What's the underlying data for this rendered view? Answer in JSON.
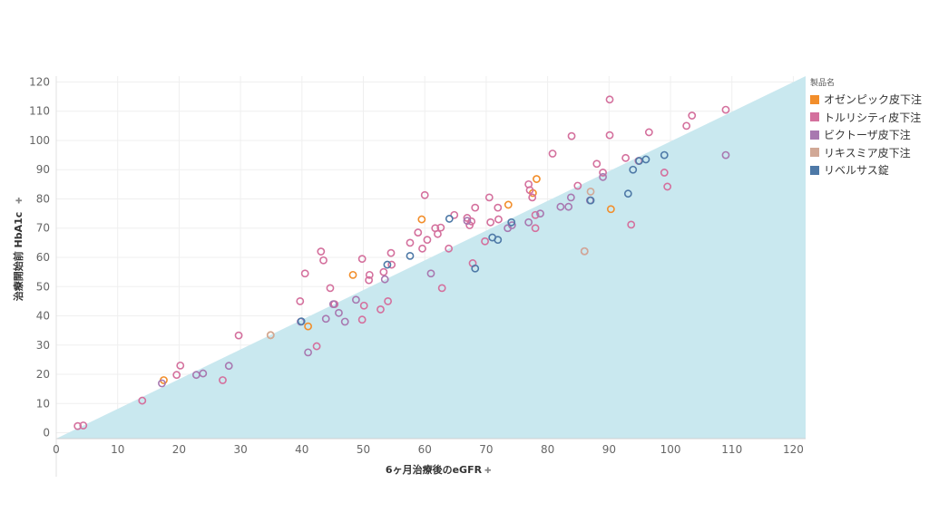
{
  "legend": {
    "title": "製品名",
    "items": [
      {
        "label": "オゼンピック皮下注",
        "color": "#f28e2b"
      },
      {
        "label": "トルリシティ皮下注",
        "color": "#d4709d"
      },
      {
        "label": "ビクトーザ皮下注",
        "color": "#a878b0"
      },
      {
        "label": "リキスミア皮下注",
        "color": "#d1a896"
      },
      {
        "label": "リベルサス錠",
        "color": "#4e79a7"
      }
    ]
  },
  "chart_data": {
    "type": "scatter",
    "xlabel": "6ヶ月治療後のeGFR",
    "ylabel": "治療開始前 HbA1c",
    "xlim": [
      0,
      122
    ],
    "ylim": [
      -2,
      122
    ],
    "x_ticks": [
      0,
      10,
      20,
      30,
      40,
      50,
      60,
      70,
      80,
      90,
      100,
      110,
      120
    ],
    "y_ticks": [
      0,
      10,
      20,
      30,
      40,
      50,
      60,
      70,
      80,
      90,
      100,
      110,
      120
    ],
    "grid": true,
    "legend_position": "right",
    "reference_area": {
      "type": "below-diagonal-y-equals-x",
      "color": "#c9e8ef"
    },
    "series": [
      {
        "name": "オゼンピック皮下注",
        "color": "#f28e2b",
        "points": [
          [
            17.5,
            18
          ],
          [
            34.9,
            33.4
          ],
          [
            41,
            36.4
          ],
          [
            48.3,
            54
          ],
          [
            59.5,
            73
          ],
          [
            73.6,
            78
          ],
          [
            77.6,
            82
          ],
          [
            78.2,
            86.8
          ],
          [
            90.3,
            76.5
          ]
        ]
      },
      {
        "name": "トルリシティ皮下注",
        "color": "#d4709d",
        "points": [
          [
            3.5,
            2.3
          ],
          [
            4.4,
            2.5
          ],
          [
            14,
            11
          ],
          [
            19.6,
            19.8
          ],
          [
            20.2,
            23
          ],
          [
            27.1,
            18
          ],
          [
            29.7,
            33.3
          ],
          [
            39.7,
            45
          ],
          [
            40.5,
            54.5
          ],
          [
            42.4,
            29.6
          ],
          [
            43.1,
            62
          ],
          [
            43.5,
            59
          ],
          [
            44.6,
            49.5
          ],
          [
            45.3,
            44
          ],
          [
            49.8,
            59.5
          ],
          [
            49.8,
            38.7
          ],
          [
            50.1,
            43.5
          ],
          [
            50.9,
            52.2
          ],
          [
            51,
            54
          ],
          [
            52.8,
            42.2
          ],
          [
            53.3,
            55
          ],
          [
            54,
            45
          ],
          [
            54.5,
            61.5
          ],
          [
            54.6,
            57.5
          ],
          [
            57.6,
            65
          ],
          [
            58.9,
            68.5
          ],
          [
            59.6,
            63
          ],
          [
            60,
            81.3
          ],
          [
            60.4,
            66
          ],
          [
            61.7,
            70
          ],
          [
            62.1,
            68
          ],
          [
            62.6,
            70.2
          ],
          [
            62.8,
            49.5
          ],
          [
            63.9,
            63
          ],
          [
            64.8,
            74.5
          ],
          [
            66.9,
            73.5
          ],
          [
            67.3,
            71
          ],
          [
            67.6,
            72.3
          ],
          [
            67.8,
            58
          ],
          [
            68.2,
            77
          ],
          [
            69.8,
            65.5
          ],
          [
            70.5,
            80.5
          ],
          [
            70.7,
            72
          ],
          [
            71.9,
            77
          ],
          [
            72,
            73
          ],
          [
            76.9,
            85
          ],
          [
            77.1,
            83
          ],
          [
            77.5,
            80.5
          ],
          [
            78,
            74.5
          ],
          [
            78,
            70
          ],
          [
            80.8,
            95.5
          ],
          [
            83.9,
            101.5
          ],
          [
            84.9,
            84.5
          ],
          [
            86,
            62.1
          ],
          [
            88,
            92
          ],
          [
            89,
            89
          ],
          [
            90.1,
            114
          ],
          [
            90.1,
            101.8
          ],
          [
            92.7,
            94
          ],
          [
            93.6,
            71.2
          ],
          [
            94.8,
            93
          ],
          [
            96.5,
            102.8
          ],
          [
            99,
            89
          ],
          [
            99.5,
            84.2
          ],
          [
            102.6,
            105
          ],
          [
            103.5,
            108.5
          ],
          [
            109,
            110.5
          ]
        ]
      },
      {
        "name": "ビクトーザ皮下注",
        "color": "#a878b0",
        "points": [
          [
            17.2,
            16.9
          ],
          [
            22.8,
            19.8
          ],
          [
            23.9,
            20.3
          ],
          [
            28.1,
            22.9
          ],
          [
            39.8,
            38
          ],
          [
            41,
            27.5
          ],
          [
            43.9,
            39
          ],
          [
            45.1,
            44
          ],
          [
            46,
            41
          ],
          [
            47,
            38
          ],
          [
            48.8,
            45.5
          ],
          [
            53.5,
            52.5
          ],
          [
            61,
            54.5
          ],
          [
            66.9,
            72.5
          ],
          [
            73.5,
            70
          ],
          [
            74.2,
            71
          ],
          [
            76.9,
            72
          ],
          [
            78.8,
            75
          ],
          [
            82.1,
            77.3
          ],
          [
            83.4,
            77.3
          ],
          [
            83.8,
            80.5
          ],
          [
            86.9,
            79.5
          ],
          [
            89,
            87.5
          ],
          [
            109,
            95
          ]
        ]
      },
      {
        "name": "リキスミア皮下注",
        "color": "#d1a896",
        "points": [
          [
            34.9,
            33.4
          ],
          [
            86,
            62.1
          ],
          [
            87,
            82.5
          ]
        ]
      },
      {
        "name": "リベルサス錠",
        "color": "#4e79a7",
        "points": [
          [
            39.9,
            38.1
          ],
          [
            53.9,
            57.5
          ],
          [
            57.6,
            60.5
          ],
          [
            64,
            73.2
          ],
          [
            68.2,
            56.2
          ],
          [
            71,
            66.8
          ],
          [
            71.9,
            66
          ],
          [
            74.1,
            72
          ],
          [
            87,
            79.5
          ],
          [
            93.1,
            81.8
          ],
          [
            93.9,
            90
          ],
          [
            94.9,
            93
          ],
          [
            96,
            93.5
          ],
          [
            99,
            95
          ]
        ]
      }
    ]
  }
}
